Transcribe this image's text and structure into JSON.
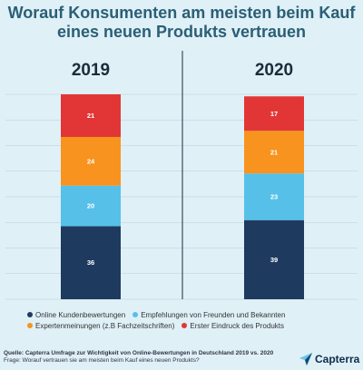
{
  "title_lines": [
    "Worauf Konsumenten am meisten beim Kauf",
    "eines neuen Produkts vertrauen"
  ],
  "chart_data": {
    "type": "bar",
    "stacked": true,
    "categories": [
      "2019",
      "2020"
    ],
    "series": [
      {
        "name": "Online Kundenbewertungen",
        "values": [
          36,
          39
        ],
        "color": "#1f3a5f"
      },
      {
        "name": "Empfehlungen von Freunden und Bekannten",
        "values": [
          20,
          23
        ],
        "color": "#56c0e8"
      },
      {
        "name": "Expertenmeinungen (z.B Fachzeitschriften)",
        "values": [
          24,
          21
        ],
        "color": "#f7931e"
      },
      {
        "name": "Erster Eindruck des Produkts",
        "values": [
          21,
          17
        ],
        "color": "#e23636"
      }
    ],
    "ylim": [
      0,
      101
    ],
    "grid": true,
    "legend_position": "bottom"
  },
  "source": {
    "line1": "Quelle: Capterra Umfrage zur Wichtigkeit von Online-Bewertungen in Deutschland 2019 vs. 2020",
    "line2": "Frage: Worauf vertrauen sie am meisten beim Kauf eines neuen Produkts?"
  },
  "logo": {
    "text": "Capterra",
    "icon": "capterra-logo-icon"
  },
  "colors": {
    "background": "#dff0f7",
    "title": "#2b5f75",
    "grid": "#b9cfd8"
  }
}
